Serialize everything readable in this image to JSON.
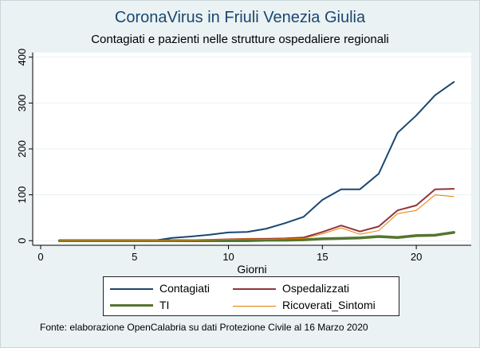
{
  "chart_data": {
    "type": "line",
    "title": "CoronaVirus in Friuli Venezia Giulia",
    "subtitle": "Contagiati e pazienti nelle strutture ospedaliere regionali",
    "xlabel": "Giorni",
    "ylabel": "",
    "xlim": [
      0,
      22.5
    ],
    "ylim": [
      -10,
      410
    ],
    "xticks": [
      0,
      5,
      10,
      15,
      20
    ],
    "yticks": [
      0,
      100,
      200,
      300,
      400
    ],
    "grid": "horizontal",
    "legend_position": "bottom",
    "x": [
      1,
      2,
      3,
      4,
      5,
      6,
      7,
      8,
      9,
      10,
      11,
      12,
      13,
      14,
      15,
      16,
      17,
      18,
      19,
      20,
      21,
      22
    ],
    "series": [
      {
        "name": "Contagiati",
        "color": "#1a476f",
        "width": 2,
        "values": [
          0,
          0,
          0,
          0,
          0,
          0,
          6,
          9,
          13,
          18,
          19,
          26,
          38,
          52,
          89,
          112,
          112,
          146,
          235,
          273,
          317,
          346
        ]
      },
      {
        "name": "Ospedalizzati",
        "color": "#90353b",
        "width": 2,
        "values": [
          0,
          0,
          0,
          0,
          0,
          0,
          0,
          1,
          2,
          3,
          4,
          4,
          5,
          7,
          19,
          33,
          20,
          31,
          66,
          77,
          112,
          113
        ]
      },
      {
        "name": "TI",
        "color": "#55752f",
        "width": 3.5,
        "values": [
          0,
          0,
          0,
          0,
          0,
          0,
          0,
          0,
          0,
          0,
          0,
          1,
          1,
          2,
          4,
          5,
          6,
          9,
          7,
          11,
          12,
          18
        ]
      },
      {
        "name": "Ricoverati_Sintomi",
        "color": "#e37e00",
        "width": 1,
        "values": [
          0,
          0,
          0,
          0,
          0,
          0,
          0,
          1,
          2,
          3,
          4,
          3,
          4,
          5,
          15,
          28,
          14,
          22,
          59,
          66,
          100,
          96
        ]
      }
    ]
  },
  "footnote": "Fonte: elaborazione OpenCalabria su dati Protezione Civile al 16 Marzo 2020"
}
